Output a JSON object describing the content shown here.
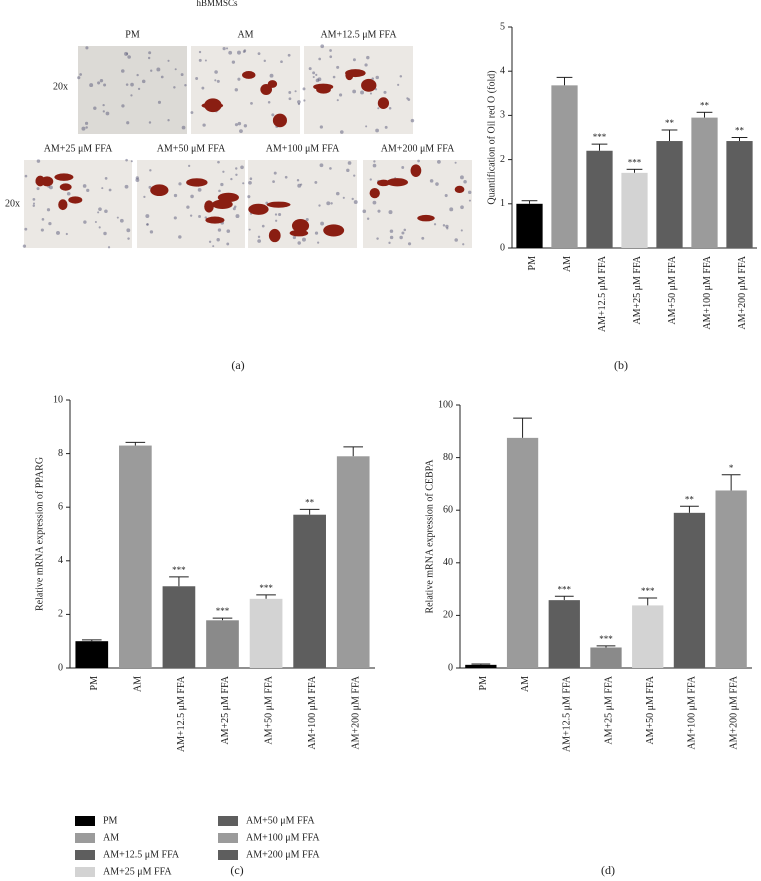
{
  "image_panel": {
    "title": "hBMMSCs",
    "magnification": [
      "20x",
      "20x"
    ],
    "labels": [
      "PM",
      "AM",
      "AM+12.5 μM FFA",
      "AM+25 μM FFA",
      "AM+50 μM FFA",
      "AM+100 μM FFA",
      "AM+200 μM FFA"
    ]
  },
  "panel_labels": [
    "(a)",
    "(b)",
    "(c)",
    "(d)"
  ],
  "chart_data": [
    {
      "type": "bar",
      "ylabel": "Quantification of Oil red O (fold)",
      "categories": [
        "PM",
        "AM",
        "AM+12.5 μM FFA",
        "AM+25 μM FFA",
        "AM+50 μM FFA",
        "AM+100 μM FFA",
        "AM+200 μM FFA"
      ],
      "values": [
        1.0,
        3.68,
        2.2,
        1.7,
        2.42,
        2.95,
        2.42
      ],
      "errors": [
        0.07,
        0.18,
        0.15,
        0.08,
        0.25,
        0.12,
        0.08
      ],
      "annotations": [
        null,
        null,
        "***",
        "***",
        "**",
        "**",
        "**"
      ],
      "colors": [
        "#000000",
        "#9b9b9b",
        "#5e5e5e",
        "#d3d3d3",
        "#5e5e5e",
        "#9b9b9b",
        "#5e5e5e"
      ],
      "ylim": [
        0,
        5
      ],
      "yticks": [
        0,
        1,
        2,
        3,
        4,
        5
      ]
    },
    {
      "type": "bar",
      "ylabel": "Relative mRNA expression of PPARG",
      "categories": [
        "PM",
        "AM",
        "AM+12.5 μM FFA",
        "AM+25 μM FFA",
        "AM+50 μM FFA",
        "AM+100 μM FFA",
        "AM+200 μM FFA"
      ],
      "values": [
        1.0,
        8.3,
        3.05,
        1.78,
        2.58,
        5.72,
        7.9
      ],
      "errors": [
        0.05,
        0.12,
        0.35,
        0.08,
        0.15,
        0.2,
        0.35
      ],
      "annotations": [
        null,
        null,
        "***",
        "***",
        "***",
        "**",
        null
      ],
      "colors": [
        "#000000",
        "#9b9b9b",
        "#5e5e5e",
        "#8a8a8a",
        "#d3d3d3",
        "#5e5e5e",
        "#9b9b9b"
      ],
      "legend_colors": [
        "#000000",
        "#9b9b9b",
        "#5e5e5e",
        "#d3d3d3",
        "#5e5e5e",
        "#9b9b9b",
        "#5e5e5e"
      ],
      "ylim": [
        0,
        10
      ],
      "yticks": [
        0,
        2,
        4,
        6,
        8,
        10
      ]
    },
    {
      "type": "bar",
      "ylabel": "Relative mRNA expression of CEBPA",
      "categories": [
        "PM",
        "AM",
        "AM+12.5 μM FFA",
        "AM+25 μM FFA",
        "AM+50 μM FFA",
        "AM+100 μM FFA",
        "AM+200 μM FFA"
      ],
      "values": [
        1.2,
        87.5,
        25.8,
        7.8,
        23.8,
        59,
        67.5
      ],
      "errors": [
        0.3,
        7.5,
        1.5,
        0.6,
        2.8,
        2.5,
        6
      ],
      "annotations": [
        null,
        null,
        "***",
        "***",
        "***",
        "**",
        "*"
      ],
      "colors": [
        "#000000",
        "#9b9b9b",
        "#5e5e5e",
        "#8a8a8a",
        "#d3d3d3",
        "#5e5e5e",
        "#9b9b9b"
      ],
      "ylim": [
        0,
        100
      ],
      "yticks": [
        0,
        20,
        40,
        60,
        80,
        100
      ]
    }
  ]
}
